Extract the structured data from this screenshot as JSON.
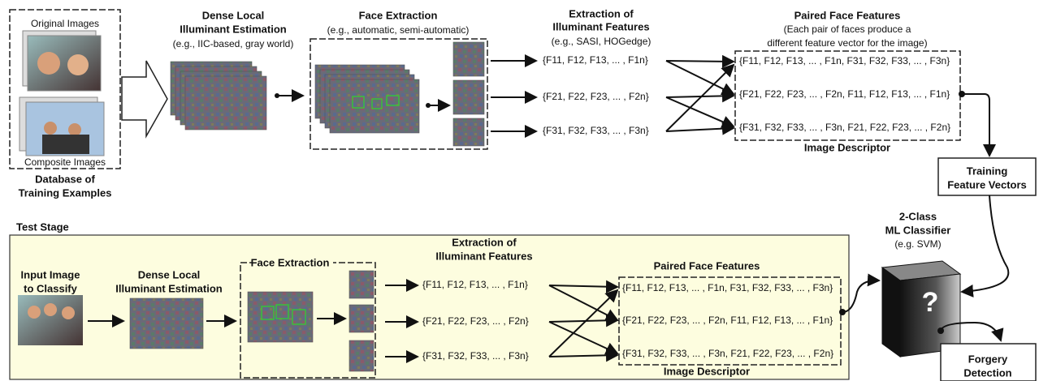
{
  "training": {
    "original_images": "Original Images",
    "composite_images": "Composite Images",
    "database": [
      "Database of",
      "Training Examples"
    ],
    "illuminant_estimation": [
      "Dense Local",
      "Illuminant Estimation",
      "(e.g., IIC-based, gray world)"
    ],
    "face_extraction": [
      "Face Extraction",
      "(e.g., automatic, semi-automatic)"
    ],
    "feature_extraction": [
      "Extraction of",
      "Illuminant Features",
      "(e.g., SASI, HOGedge)"
    ],
    "features": [
      "{F11, F12, F13, ... , F1n}",
      "{F21, F22, F23, ... , F2n}",
      "{F31, F32, F33, ... , F3n}"
    ],
    "paired": [
      "Paired Face Features",
      "(Each pair of faces produce a",
      "different feature vector for the image)"
    ],
    "paired_features": [
      "{F11, F12, F13, ... , F1n, F31, F32, F33, ... , F3n}",
      "{F21, F22, F23, ... , F2n, F11, F12, F13, ... , F1n}",
      "{F31, F32, F33, ... , F3n, F21, F22, F23, ... , F2n}"
    ],
    "image_descriptor": "Image Descriptor",
    "training_vectors": [
      "Training",
      "Feature Vectors"
    ]
  },
  "test": {
    "stage": "Test Stage",
    "input": [
      "Input Image",
      "to Classify"
    ],
    "illuminant_estimation": [
      "Dense Local",
      "Illuminant Estimation"
    ],
    "face_extraction": "Face Extraction",
    "feature_extraction": [
      "Extraction of",
      "Illuminant Features"
    ],
    "features": [
      "{F11, F12, F13, ... , F1n}",
      "{F21, F22, F23, ... , F2n}",
      "{F31, F32, F33, ... , F3n}"
    ],
    "paired": "Paired Face Features",
    "paired_features": [
      "{F11, F12, F13, ... , F1n, F31, F32, F33, ... , F3n}",
      "{F21, F22, F23, ... , F2n, F11, F12, F13, ... , F1n}",
      "{F31, F32, F33, ... , F3n, F21, F22, F23, ... , F2n}"
    ],
    "image_descriptor": "Image Descriptor"
  },
  "classifier": [
    "2-Class",
    "ML Classifier",
    "(e.g. SVM)"
  ],
  "classifier_symbol": "?",
  "output": [
    "Forgery",
    "Detection"
  ]
}
